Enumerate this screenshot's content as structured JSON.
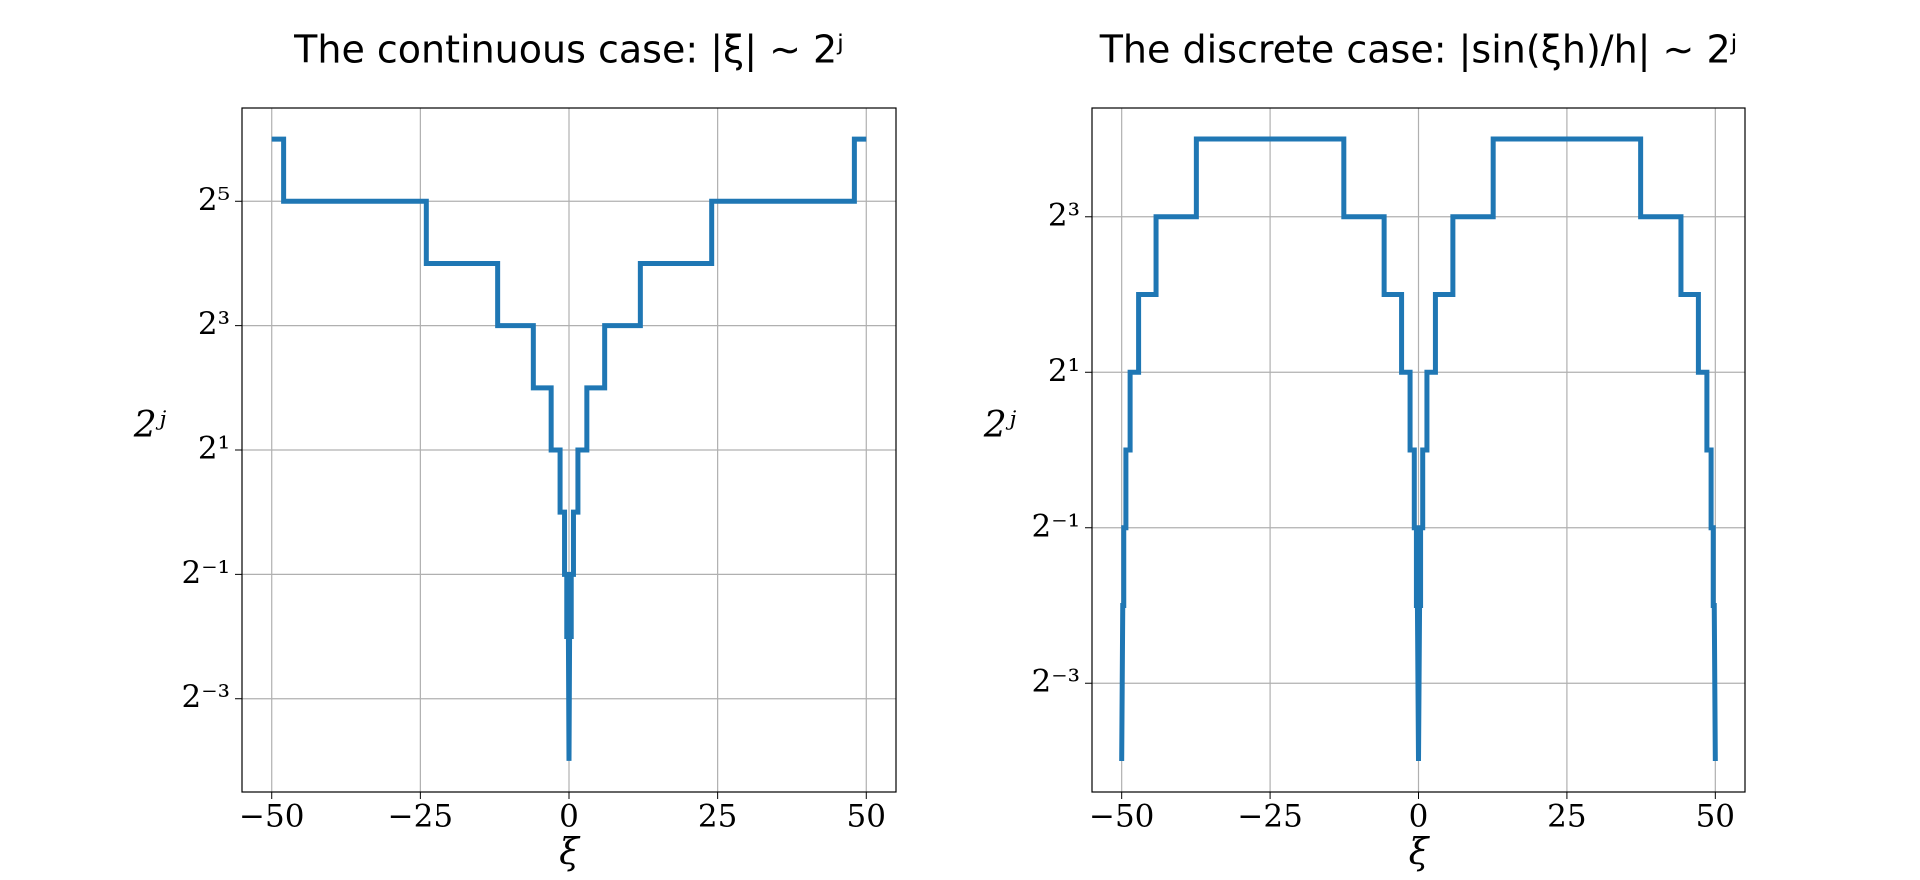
{
  "chart_data": [
    {
      "type": "line",
      "title": "The continuous case: |ξ| ∼ 2ʲ",
      "xlabel": "ξ",
      "ylabel": "2ʲ",
      "yscale": "log",
      "logbase": 2,
      "grid": true,
      "color": "#1f77b4",
      "x": [
        -50,
        -48,
        -48,
        -24,
        -24,
        -12,
        -12,
        -6,
        -6,
        -3,
        -3,
        -1.5,
        -1.5,
        -0.75,
        -0.75,
        -0.375,
        -0.375,
        -0.1,
        0,
        0.1,
        0.375,
        0.375,
        0.75,
        0.75,
        1.5,
        1.5,
        3,
        3,
        6,
        6,
        12,
        12,
        24,
        24,
        48,
        48,
        50
      ],
      "values": [
        64,
        64,
        32,
        32,
        16,
        16,
        8,
        8,
        4,
        4,
        2,
        2,
        1,
        1,
        0.5,
        0.5,
        0.25,
        0.25,
        0.0625,
        0.25,
        0.25,
        0.5,
        0.5,
        1,
        1,
        2,
        2,
        4,
        4,
        8,
        8,
        16,
        16,
        32,
        32,
        64,
        64
      ],
      "xlim": [
        -55,
        55
      ],
      "xticks": [
        {
          "value": -50,
          "label": "−50"
        },
        {
          "value": -25,
          "label": "−25"
        },
        0,
        25,
        50
      ],
      "ylim": [
        0.0442,
        90.5
      ],
      "yticks": [
        {
          "value": 0.125,
          "label": "2⁻³"
        },
        {
          "value": 0.5,
          "label": "2⁻¹"
        },
        {
          "value": 2,
          "label": "2¹"
        },
        {
          "value": 8,
          "label": "2³"
        },
        {
          "value": 32,
          "label": "2⁵"
        }
      ]
    },
    {
      "type": "line",
      "title": "The discrete case: |sin(ξh)/h| ∼ 2ʲ",
      "xlabel": "ξ",
      "ylabel": "2ʲ",
      "yscale": "log",
      "logbase": 2,
      "grid": true,
      "color": "#1f77b4",
      "x": [
        -50,
        -49.82,
        -49.65,
        -49.65,
        -49.29,
        -49.29,
        -48.58,
        -48.58,
        -47.15,
        -47.15,
        -44.21,
        -44.21,
        -37.42,
        -37.42,
        -12.58,
        -12.58,
        -5.79,
        -5.79,
        -2.85,
        -2.85,
        -1.42,
        -1.42,
        -0.71,
        -0.71,
        -0.35,
        -0.35,
        -0.18,
        0,
        0.18,
        0.35,
        0.35,
        0.71,
        0.71,
        1.42,
        1.42,
        2.85,
        2.85,
        5.79,
        5.79,
        12.58,
        12.58,
        37.42,
        37.42,
        44.21,
        44.21,
        47.15,
        47.15,
        48.58,
        48.58,
        49.29,
        49.29,
        49.65,
        49.65,
        49.82,
        50
      ],
      "values": [
        0.0625,
        0.25,
        0.25,
        0.5,
        0.5,
        1,
        1,
        2,
        2,
        4,
        4,
        8,
        8,
        16,
        16,
        8,
        8,
        4,
        4,
        2,
        2,
        1,
        1,
        0.5,
        0.5,
        0.25,
        0.25,
        0.0625,
        0.25,
        0.25,
        0.5,
        0.5,
        1,
        1,
        2,
        2,
        4,
        4,
        8,
        8,
        16,
        16,
        8,
        8,
        4,
        4,
        2,
        2,
        1,
        1,
        0.5,
        0.5,
        0.25,
        0.25,
        0.0625
      ],
      "xlim": [
        -55,
        55
      ],
      "xticks": [
        {
          "value": -50,
          "label": "−50"
        },
        {
          "value": -25,
          "label": "−25"
        },
        0,
        25,
        50
      ],
      "ylim": [
        0.0474,
        21.1
      ],
      "yticks": [
        {
          "value": 0.125,
          "label": "2⁻³"
        },
        {
          "value": 0.5,
          "label": "2⁻¹"
        },
        {
          "value": 2,
          "label": "2¹"
        },
        {
          "value": 8,
          "label": "2³"
        }
      ]
    }
  ]
}
